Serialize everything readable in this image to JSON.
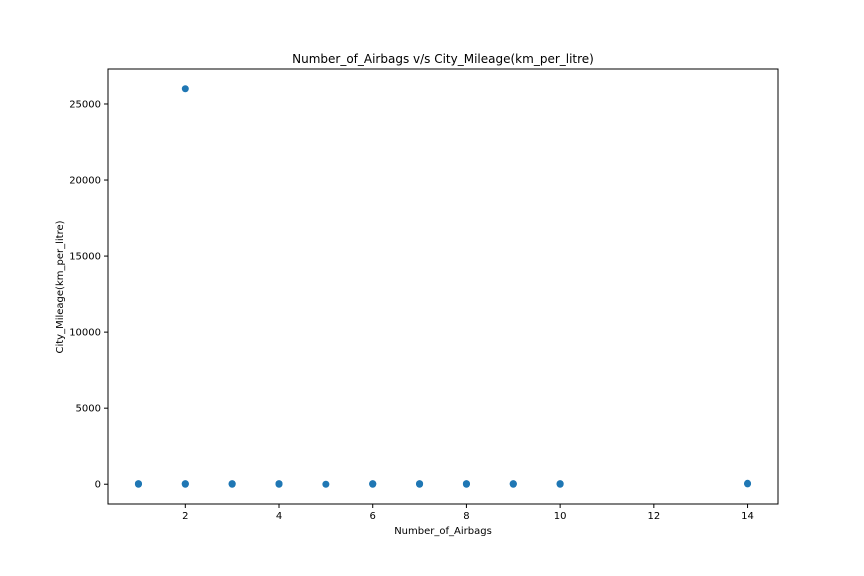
{
  "chart_data": {
    "type": "scatter",
    "title": "Number_of_Airbags v/s City_Mileage(km_per_litre)",
    "xlabel": "Number_of_Airbags",
    "ylabel": "City_Mileage(km_per_litre)",
    "xlim": [
      0.35,
      14.65
    ],
    "ylim": [
      -1300,
      27300
    ],
    "xticks": [
      2,
      4,
      6,
      8,
      10,
      12,
      14
    ],
    "yticks": [
      0,
      5000,
      10000,
      15000,
      20000,
      25000
    ],
    "grid": false,
    "legend": "none",
    "marker_color": "#1f77b4",
    "points": [
      {
        "x": 1,
        "y": 0
      },
      {
        "x": 1,
        "y": 20
      },
      {
        "x": 1,
        "y": 40
      },
      {
        "x": 2,
        "y": 0
      },
      {
        "x": 2,
        "y": 20
      },
      {
        "x": 2,
        "y": 40
      },
      {
        "x": 2,
        "y": 26000
      },
      {
        "x": 3,
        "y": 0
      },
      {
        "x": 3,
        "y": 20
      },
      {
        "x": 3,
        "y": 40
      },
      {
        "x": 4,
        "y": 0
      },
      {
        "x": 4,
        "y": 20
      },
      {
        "x": 4,
        "y": 40
      },
      {
        "x": 5,
        "y": 0
      },
      {
        "x": 6,
        "y": 0
      },
      {
        "x": 6,
        "y": 20
      },
      {
        "x": 6,
        "y": 40
      },
      {
        "x": 7,
        "y": 0
      },
      {
        "x": 7,
        "y": 20
      },
      {
        "x": 7,
        "y": 40
      },
      {
        "x": 8,
        "y": 0
      },
      {
        "x": 8,
        "y": 20
      },
      {
        "x": 8,
        "y": 40
      },
      {
        "x": 9,
        "y": 0
      },
      {
        "x": 9,
        "y": 20
      },
      {
        "x": 9,
        "y": 40
      },
      {
        "x": 10,
        "y": 0
      },
      {
        "x": 10,
        "y": 20
      },
      {
        "x": 10,
        "y": 40
      },
      {
        "x": 14,
        "y": 20
      },
      {
        "x": 14,
        "y": 60
      }
    ]
  }
}
